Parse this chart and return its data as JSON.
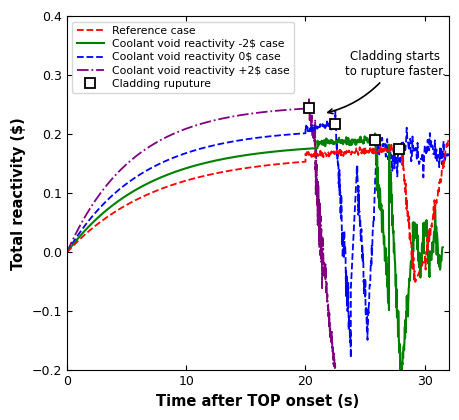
{
  "title": "",
  "xlabel": "Time after TOP onset (s)",
  "ylabel": "Total reactivity ($)",
  "xlim": [
    0,
    32
  ],
  "ylim": [
    -0.2,
    0.4
  ],
  "xticks": [
    0,
    10,
    20,
    30
  ],
  "yticks": [
    -0.2,
    -0.1,
    0.0,
    0.1,
    0.2,
    0.3,
    0.4
  ],
  "annotation_text": "Cladding starts\nto rupture faster.",
  "legend_entries": [
    "Reference case",
    "Coolant void reactivity -2$ case",
    "Coolant void reactivity 0$ case",
    "Coolant void reactivity +2$ case",
    "Cladding ruputure"
  ],
  "colors": {
    "reference": "#FF0000",
    "minus2": "#008000",
    "zero": "#0000FF",
    "plus2": "#800080"
  },
  "rupture_markers": [
    [
      20.3,
      0.245
    ],
    [
      22.5,
      0.218
    ],
    [
      25.8,
      0.19
    ],
    [
      27.8,
      0.175
    ]
  ]
}
